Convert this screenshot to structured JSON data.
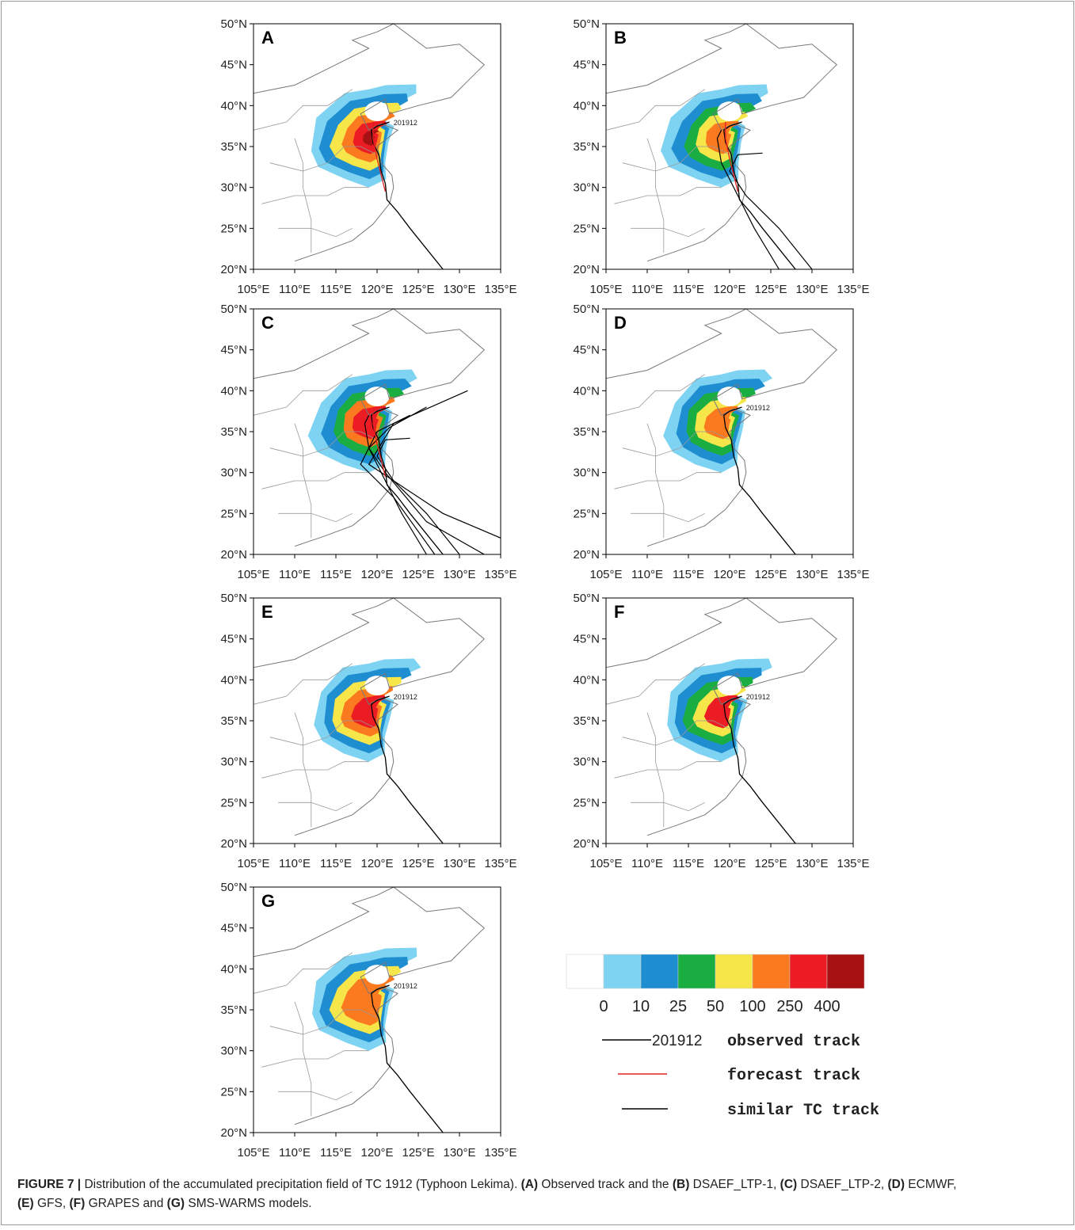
{
  "panels": [
    {
      "letter": "A",
      "track_label": "201912"
    },
    {
      "letter": "B"
    },
    {
      "letter": "C"
    },
    {
      "letter": "D",
      "track_label": "201912"
    },
    {
      "letter": "E",
      "track_label": "201912"
    },
    {
      "letter": "F",
      "track_label": "201912"
    },
    {
      "letter": "G",
      "track_label": "201912"
    }
  ],
  "lat_ticks": [
    "50°N",
    "45°N",
    "40°N",
    "35°N",
    "30°N",
    "25°N",
    "20°N"
  ],
  "lon_ticks": [
    "105°E",
    "110°E",
    "115°E",
    "120°E",
    "125°E",
    "130°E",
    "135°E"
  ],
  "colorbar": {
    "levels": [
      0,
      10,
      25,
      50,
      100,
      250,
      400
    ],
    "colors": [
      "#ffffff",
      "#7fd3f2",
      "#1e8ed1",
      "#1aae42",
      "#f7e64a",
      "#fb7a1f",
      "#ec1c24",
      "#a81113"
    ]
  },
  "legend": [
    {
      "sample": "201912",
      "label": "observed track",
      "color": "#000000"
    },
    {
      "label": "forecast track",
      "color": "#e02020"
    },
    {
      "label": "similar TC track",
      "color": "#000000"
    }
  ],
  "caption": [
    {
      "text": "FIGURE 7 |",
      "bold": true
    },
    {
      "text": " Distribution of the accumulated precipitation field of TC 1912 (Typhoon Lekima). ",
      "bold": false
    },
    {
      "text": "(A)",
      "bold": true
    },
    {
      "text": " Observed track and the ",
      "bold": false
    },
    {
      "text": "(B)",
      "bold": true
    },
    {
      "text": " DSAEF_LTP-1, ",
      "bold": false
    },
    {
      "text": "(C)",
      "bold": true
    },
    {
      "text": " DSAEF_LTP-2, ",
      "bold": false
    },
    {
      "text": "(D)",
      "bold": true
    },
    {
      "text": " ECMWF, ",
      "bold": false,
      "break": true
    },
    {
      "text": "(E)",
      "bold": true
    },
    {
      "text": " GFS, ",
      "bold": false
    },
    {
      "text": "(F)",
      "bold": true
    },
    {
      "text": " GRAPES and ",
      "bold": false
    },
    {
      "text": "(G)",
      "bold": true
    },
    {
      "text": " SMS-WARMS models.",
      "bold": false
    }
  ]
}
